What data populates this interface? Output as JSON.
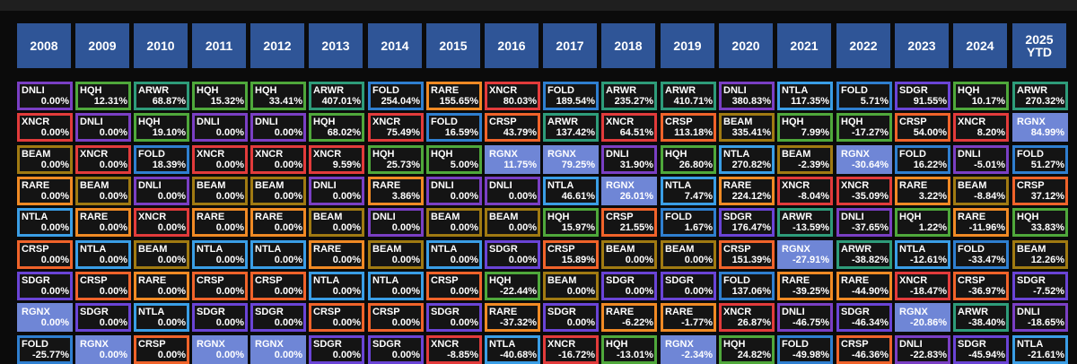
{
  "years": [
    "2008",
    "2009",
    "2010",
    "2011",
    "2012",
    "2013",
    "2014",
    "2015",
    "2016",
    "2017",
    "2018",
    "2019",
    "2020",
    "2021",
    "2022",
    "2023",
    "2024",
    "2025\nYTD"
  ],
  "ticker_colors": {
    "DNLI": "#7a3fc4",
    "HQH": "#4fa83b",
    "ARWR": "#2e9c7a",
    "FOLD": "#2f7fd0",
    "RARE": "#f08a24",
    "XNCR": "#e23b3b",
    "CRSP": "#f0632a",
    "BEAM": "#a07a12",
    "NTLA": "#3a9ee6",
    "SDGR": "#6a44d6",
    "RGNX": "#6f86d6"
  },
  "columns": [
    {
      "cells": [
        [
          "DNLI",
          "0.00%"
        ],
        [
          "XNCR",
          "0.00%"
        ],
        [
          "BEAM",
          "0.00%"
        ],
        [
          "RARE",
          "0.00%"
        ],
        [
          "NTLA",
          "0.00%"
        ],
        [
          "CRSP",
          "0.00%"
        ],
        [
          "SDGR",
          "0.00%"
        ],
        [
          "RGNX",
          "0.00%"
        ],
        [
          "FOLD",
          "-25.77%"
        ]
      ]
    },
    {
      "cells": [
        [
          "HQH",
          "12.31%"
        ],
        [
          "DNLI",
          "0.00%"
        ],
        [
          "XNCR",
          "0.00%"
        ],
        [
          "BEAM",
          "0.00%"
        ],
        [
          "RARE",
          "0.00%"
        ],
        [
          "NTLA",
          "0.00%"
        ],
        [
          "CRSP",
          "0.00%"
        ],
        [
          "SDGR",
          "0.00%"
        ],
        [
          "RGNX",
          "0.00%"
        ]
      ]
    },
    {
      "cells": [
        [
          "ARWR",
          "68.87%"
        ],
        [
          "HQH",
          "19.10%"
        ],
        [
          "FOLD",
          "18.39%"
        ],
        [
          "DNLI",
          "0.00%"
        ],
        [
          "XNCR",
          "0.00%"
        ],
        [
          "BEAM",
          "0.00%"
        ],
        [
          "RARE",
          "0.00%"
        ],
        [
          "NTLA",
          "0.00%"
        ],
        [
          "CRSP",
          "0.00%"
        ]
      ]
    },
    {
      "cells": [
        [
          "HQH",
          "15.32%"
        ],
        [
          "DNLI",
          "0.00%"
        ],
        [
          "XNCR",
          "0.00%"
        ],
        [
          "BEAM",
          "0.00%"
        ],
        [
          "RARE",
          "0.00%"
        ],
        [
          "NTLA",
          "0.00%"
        ],
        [
          "CRSP",
          "0.00%"
        ],
        [
          "SDGR",
          "0.00%"
        ],
        [
          "RGNX",
          "0.00%"
        ]
      ]
    },
    {
      "cells": [
        [
          "HQH",
          "33.41%"
        ],
        [
          "DNLI",
          "0.00%"
        ],
        [
          "XNCR",
          "0.00%"
        ],
        [
          "BEAM",
          "0.00%"
        ],
        [
          "RARE",
          "0.00%"
        ],
        [
          "NTLA",
          "0.00%"
        ],
        [
          "CRSP",
          "0.00%"
        ],
        [
          "SDGR",
          "0.00%"
        ],
        [
          "RGNX",
          "0.00%"
        ]
      ]
    },
    {
      "cells": [
        [
          "ARWR",
          "407.01%"
        ],
        [
          "HQH",
          "68.02%"
        ],
        [
          "XNCR",
          "9.59%"
        ],
        [
          "DNLI",
          "0.00%"
        ],
        [
          "BEAM",
          "0.00%"
        ],
        [
          "RARE",
          "0.00%"
        ],
        [
          "NTLA",
          "0.00%"
        ],
        [
          "CRSP",
          "0.00%"
        ],
        [
          "SDGR",
          "0.00%"
        ]
      ]
    },
    {
      "cells": [
        [
          "FOLD",
          "254.04%"
        ],
        [
          "XNCR",
          "75.49%"
        ],
        [
          "HQH",
          "25.73%"
        ],
        [
          "RARE",
          "3.86%"
        ],
        [
          "DNLI",
          "0.00%"
        ],
        [
          "BEAM",
          "0.00%"
        ],
        [
          "NTLA",
          "0.00%"
        ],
        [
          "CRSP",
          "0.00%"
        ],
        [
          "SDGR",
          "0.00%"
        ]
      ]
    },
    {
      "cells": [
        [
          "RARE",
          "155.65%"
        ],
        [
          "FOLD",
          "16.59%"
        ],
        [
          "HQH",
          "5.00%"
        ],
        [
          "DNLI",
          "0.00%"
        ],
        [
          "BEAM",
          "0.00%"
        ],
        [
          "NTLA",
          "0.00%"
        ],
        [
          "CRSP",
          "0.00%"
        ],
        [
          "SDGR",
          "0.00%"
        ],
        [
          "XNCR",
          "-8.85%"
        ]
      ]
    },
    {
      "cells": [
        [
          "XNCR",
          "80.03%"
        ],
        [
          "CRSP",
          "43.79%"
        ],
        [
          "RGNX",
          "11.75%"
        ],
        [
          "DNLI",
          "0.00%"
        ],
        [
          "BEAM",
          "0.00%"
        ],
        [
          "SDGR",
          "0.00%"
        ],
        [
          "HQH",
          "-22.44%"
        ],
        [
          "RARE",
          "-37.32%"
        ],
        [
          "NTLA",
          "-40.68%"
        ]
      ]
    },
    {
      "cells": [
        [
          "FOLD",
          "189.54%"
        ],
        [
          "ARWR",
          "137.42%"
        ],
        [
          "RGNX",
          "79.25%"
        ],
        [
          "NTLA",
          "46.61%"
        ],
        [
          "HQH",
          "15.97%"
        ],
        [
          "CRSP",
          "15.89%"
        ],
        [
          "BEAM",
          "0.00%"
        ],
        [
          "SDGR",
          "0.00%"
        ],
        [
          "XNCR",
          "-16.72%"
        ]
      ]
    },
    {
      "cells": [
        [
          "ARWR",
          "235.27%"
        ],
        [
          "XNCR",
          "64.51%"
        ],
        [
          "DNLI",
          "31.90%"
        ],
        [
          "RGNX",
          "26.01%"
        ],
        [
          "CRSP",
          "21.55%"
        ],
        [
          "BEAM",
          "0.00%"
        ],
        [
          "SDGR",
          "0.00%"
        ],
        [
          "RARE",
          "-6.22%"
        ],
        [
          "HQH",
          "-13.01%"
        ]
      ]
    },
    {
      "cells": [
        [
          "ARWR",
          "410.71%"
        ],
        [
          "CRSP",
          "113.18%"
        ],
        [
          "HQH",
          "26.80%"
        ],
        [
          "NTLA",
          "7.47%"
        ],
        [
          "FOLD",
          "1.67%"
        ],
        [
          "BEAM",
          "0.00%"
        ],
        [
          "SDGR",
          "0.00%"
        ],
        [
          "RARE",
          "-1.77%"
        ],
        [
          "RGNX",
          "-2.34%"
        ]
      ]
    },
    {
      "cells": [
        [
          "DNLI",
          "380.83%"
        ],
        [
          "BEAM",
          "335.41%"
        ],
        [
          "NTLA",
          "270.82%"
        ],
        [
          "RARE",
          "224.12%"
        ],
        [
          "SDGR",
          "176.47%"
        ],
        [
          "CRSP",
          "151.39%"
        ],
        [
          "FOLD",
          "137.06%"
        ],
        [
          "XNCR",
          "26.87%"
        ],
        [
          "HQH",
          "24.82%"
        ]
      ]
    },
    {
      "cells": [
        [
          "NTLA",
          "117.35%"
        ],
        [
          "HQH",
          "7.99%"
        ],
        [
          "BEAM",
          "-2.39%"
        ],
        [
          "XNCR",
          "-8.04%"
        ],
        [
          "ARWR",
          "-13.59%"
        ],
        [
          "RGNX",
          "-27.91%"
        ],
        [
          "RARE",
          "-39.25%"
        ],
        [
          "DNLI",
          "-46.75%"
        ],
        [
          "FOLD",
          "-49.98%"
        ]
      ]
    },
    {
      "cells": [
        [
          "FOLD",
          "5.71%"
        ],
        [
          "HQH",
          "-17.27%"
        ],
        [
          "RGNX",
          "-30.64%"
        ],
        [
          "XNCR",
          "-35.09%"
        ],
        [
          "DNLI",
          "-37.65%"
        ],
        [
          "ARWR",
          "-38.82%"
        ],
        [
          "RARE",
          "-44.90%"
        ],
        [
          "SDGR",
          "-46.34%"
        ],
        [
          "CRSP",
          "-46.36%"
        ]
      ]
    },
    {
      "cells": [
        [
          "SDGR",
          "91.55%"
        ],
        [
          "CRSP",
          "54.00%"
        ],
        [
          "FOLD",
          "16.22%"
        ],
        [
          "RARE",
          "3.22%"
        ],
        [
          "HQH",
          "1.22%"
        ],
        [
          "NTLA",
          "-12.61%"
        ],
        [
          "XNCR",
          "-18.47%"
        ],
        [
          "RGNX",
          "-20.86%"
        ],
        [
          "DNLI",
          "-22.83%"
        ]
      ]
    },
    {
      "cells": [
        [
          "HQH",
          "10.17%"
        ],
        [
          "XNCR",
          "8.20%"
        ],
        [
          "DNLI",
          "-5.01%"
        ],
        [
          "BEAM",
          "-8.84%"
        ],
        [
          "RARE",
          "-11.96%"
        ],
        [
          "FOLD",
          "-33.47%"
        ],
        [
          "CRSP",
          "-36.97%"
        ],
        [
          "ARWR",
          "-38.40%"
        ],
        [
          "SDGR",
          "-45.94%"
        ]
      ]
    },
    {
      "cells": [
        [
          "ARWR",
          "270.32%"
        ],
        [
          "RGNX",
          "84.99%"
        ],
        [
          "FOLD",
          "51.27%"
        ],
        [
          "CRSP",
          "37.12%"
        ],
        [
          "HQH",
          "33.83%"
        ],
        [
          "BEAM",
          "12.26%"
        ],
        [
          "SDGR",
          "-7.52%"
        ],
        [
          "DNLI",
          "-18.65%"
        ],
        [
          "NTLA",
          "-21.61%"
        ]
      ]
    }
  ]
}
